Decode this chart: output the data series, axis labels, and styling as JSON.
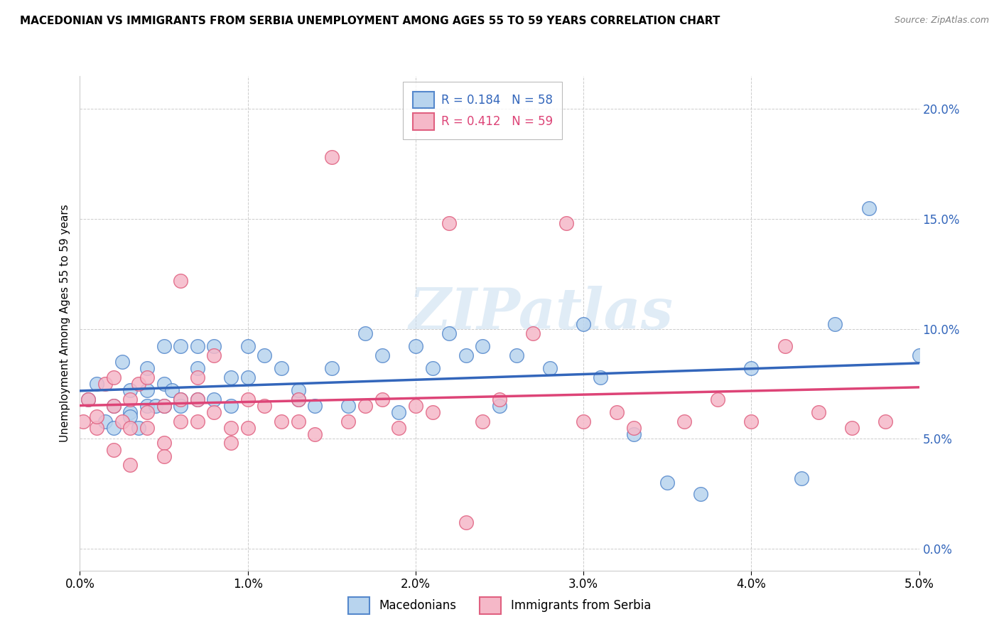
{
  "title": "MACEDONIAN VS IMMIGRANTS FROM SERBIA UNEMPLOYMENT AMONG AGES 55 TO 59 YEARS CORRELATION CHART",
  "source": "Source: ZipAtlas.com",
  "ylabel": "Unemployment Among Ages 55 to 59 years",
  "xlim": [
    0.0,
    0.05
  ],
  "ylim": [
    -0.01,
    0.215
  ],
  "xticks": [
    0.0,
    0.01,
    0.02,
    0.03,
    0.04,
    0.05
  ],
  "xticklabels": [
    "0.0%",
    "1.0%",
    "2.0%",
    "3.0%",
    "4.0%",
    "5.0%"
  ],
  "yticks": [
    0.0,
    0.05,
    0.1,
    0.15,
    0.2
  ],
  "yticklabels": [
    "0.0%",
    "5.0%",
    "10.0%",
    "15.0%",
    "20.0%"
  ],
  "macedonian_color": "#b8d4ee",
  "serbia_color": "#f5b8c8",
  "macedonian_edge_color": "#5588cc",
  "serbia_edge_color": "#e06080",
  "macedonian_line_color": "#3366bb",
  "serbia_line_color": "#dd4477",
  "R_macedonian": 0.184,
  "N_macedonian": 58,
  "R_serbia": 0.412,
  "N_serbia": 59,
  "legend_label_macedonian": "Macedonians",
  "legend_label_serbia": "Immigrants from Serbia",
  "watermark": "ZIPatlas",
  "macedonian_x": [
    0.0005,
    0.001,
    0.0015,
    0.002,
    0.002,
    0.0025,
    0.003,
    0.003,
    0.003,
    0.0035,
    0.004,
    0.004,
    0.004,
    0.0045,
    0.005,
    0.005,
    0.005,
    0.0055,
    0.006,
    0.006,
    0.006,
    0.007,
    0.007,
    0.007,
    0.008,
    0.008,
    0.009,
    0.009,
    0.01,
    0.01,
    0.011,
    0.012,
    0.013,
    0.013,
    0.014,
    0.015,
    0.016,
    0.017,
    0.018,
    0.019,
    0.02,
    0.021,
    0.022,
    0.023,
    0.024,
    0.025,
    0.026,
    0.028,
    0.03,
    0.031,
    0.033,
    0.035,
    0.037,
    0.04,
    0.043,
    0.045,
    0.047,
    0.05
  ],
  "macedonian_y": [
    0.068,
    0.075,
    0.058,
    0.065,
    0.055,
    0.085,
    0.062,
    0.072,
    0.06,
    0.055,
    0.065,
    0.082,
    0.072,
    0.065,
    0.075,
    0.092,
    0.065,
    0.072,
    0.068,
    0.092,
    0.065,
    0.068,
    0.092,
    0.082,
    0.068,
    0.092,
    0.078,
    0.065,
    0.092,
    0.078,
    0.088,
    0.082,
    0.068,
    0.072,
    0.065,
    0.082,
    0.065,
    0.098,
    0.088,
    0.062,
    0.092,
    0.082,
    0.098,
    0.088,
    0.092,
    0.065,
    0.088,
    0.082,
    0.102,
    0.078,
    0.052,
    0.03,
    0.025,
    0.082,
    0.032,
    0.102,
    0.155,
    0.088
  ],
  "serbia_x": [
    0.0002,
    0.0005,
    0.001,
    0.001,
    0.0015,
    0.002,
    0.002,
    0.002,
    0.0025,
    0.003,
    0.003,
    0.003,
    0.0035,
    0.004,
    0.004,
    0.004,
    0.005,
    0.005,
    0.005,
    0.006,
    0.006,
    0.006,
    0.007,
    0.007,
    0.007,
    0.008,
    0.008,
    0.009,
    0.009,
    0.01,
    0.01,
    0.011,
    0.012,
    0.013,
    0.013,
    0.014,
    0.015,
    0.016,
    0.017,
    0.018,
    0.019,
    0.02,
    0.021,
    0.022,
    0.023,
    0.024,
    0.025,
    0.027,
    0.029,
    0.03,
    0.032,
    0.033,
    0.036,
    0.038,
    0.04,
    0.042,
    0.044,
    0.046,
    0.048
  ],
  "serbia_y": [
    0.058,
    0.068,
    0.055,
    0.06,
    0.075,
    0.045,
    0.065,
    0.078,
    0.058,
    0.038,
    0.068,
    0.055,
    0.075,
    0.055,
    0.078,
    0.062,
    0.048,
    0.065,
    0.042,
    0.068,
    0.058,
    0.122,
    0.068,
    0.078,
    0.058,
    0.062,
    0.088,
    0.055,
    0.048,
    0.068,
    0.055,
    0.065,
    0.058,
    0.068,
    0.058,
    0.052,
    0.178,
    0.058,
    0.065,
    0.068,
    0.055,
    0.065,
    0.062,
    0.148,
    0.012,
    0.058,
    0.068,
    0.098,
    0.148,
    0.058,
    0.062,
    0.055,
    0.058,
    0.068,
    0.058,
    0.092,
    0.062,
    0.055,
    0.058
  ]
}
